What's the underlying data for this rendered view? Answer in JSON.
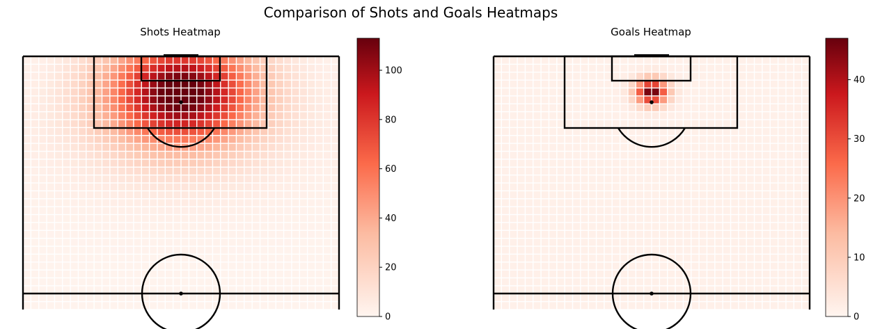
{
  "figure": {
    "title": "Comparison of Shots and Goals Heatmaps"
  },
  "colors": {
    "cmap_low": "#fff5f0",
    "cmap_mid1": "#fcbba1",
    "cmap_mid2": "#fb6a4a",
    "cmap_mid3": "#cb181d",
    "cmap_high": "#67000d",
    "pitch_lines": "#000000",
    "cell_gap": "#ffffff"
  },
  "chart_data": [
    {
      "type": "heatmap",
      "title": "Shots Heatmap",
      "xlabel": "",
      "ylabel": "",
      "grid": false,
      "colorbar": {
        "range": [
          0,
          113
        ],
        "ticks": [
          0,
          20,
          40,
          60,
          80,
          100
        ],
        "cmap": "Reds"
      },
      "hotspot": {
        "peak_value": 113,
        "description_free": true
      },
      "profile": {
        "peak": 113,
        "spread_x": 0.16,
        "spread_y": 0.14,
        "center_x": 0.5,
        "center_y": 0.14
      }
    },
    {
      "type": "heatmap",
      "title": "Goals Heatmap",
      "xlabel": "",
      "ylabel": "",
      "grid": false,
      "colorbar": {
        "range": [
          0,
          47
        ],
        "ticks": [
          0,
          10,
          20,
          30,
          40
        ],
        "cmap": "Reds"
      },
      "profile": {
        "peak": 47,
        "spread_x": 0.035,
        "spread_y": 0.035,
        "center_x": 0.5,
        "center_y": 0.14
      }
    }
  ]
}
